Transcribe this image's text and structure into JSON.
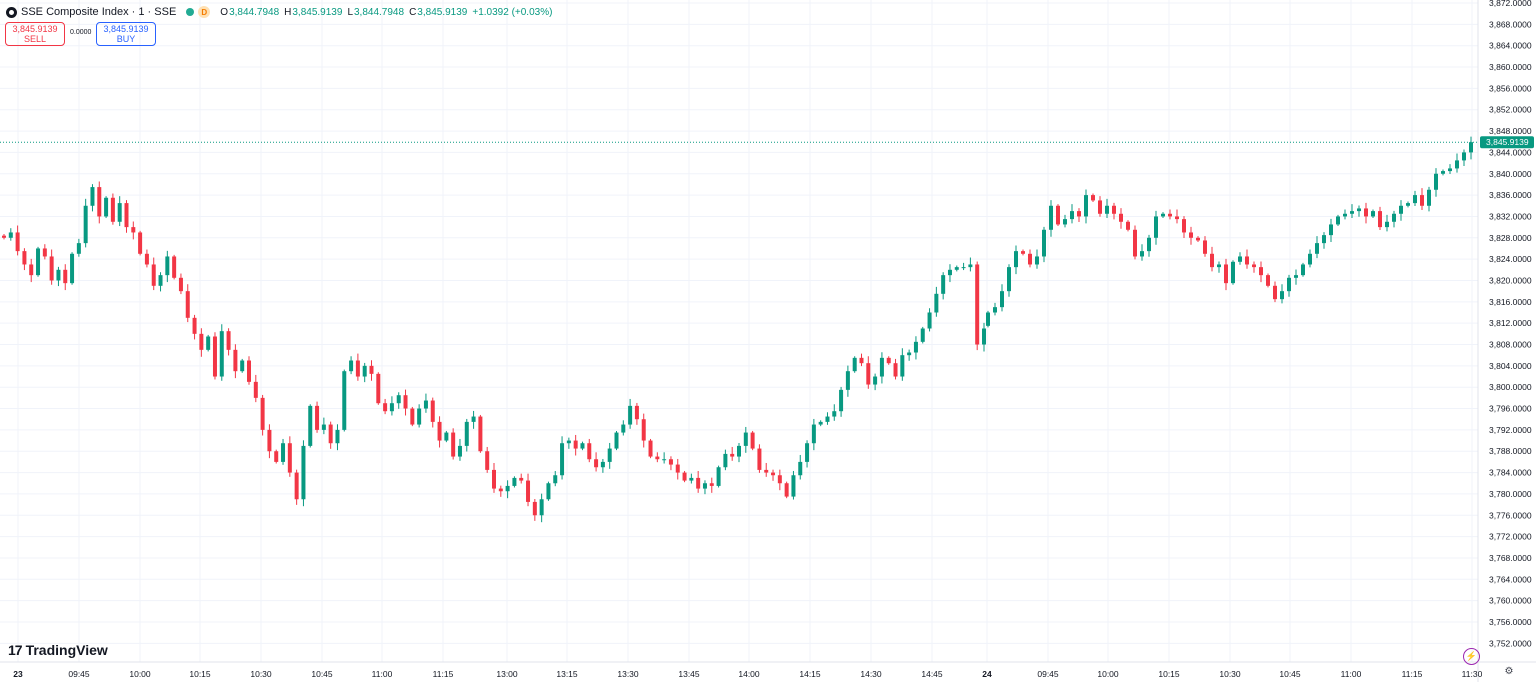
{
  "header": {
    "title": "SSE Composite Index · 1 · SSE",
    "badge": "D",
    "o_label": "O",
    "o_value": "3,844.7948",
    "h_label": "H",
    "h_value": "3,845.9139",
    "l_label": "L",
    "l_value": "3,844.7948",
    "c_label": "C",
    "c_value": "3,845.9139",
    "change": "+1.0392 (+0.03%)"
  },
  "trade": {
    "sell_price": "3,845.9139",
    "sell_label": "SELL",
    "spread": "0.0000",
    "buy_price": "3,845.9139",
    "buy_label": "BUY"
  },
  "branding": {
    "name": "TradingView"
  },
  "colors": {
    "up": "#089981",
    "down": "#f23645",
    "grid": "#f0f3fa",
    "text": "#131722",
    "price_tag": "#089981"
  },
  "chart_data": {
    "type": "candlestick",
    "y_range": [
      3750,
      3872
    ],
    "y_ticks": [
      3752,
      3756,
      3760,
      3764,
      3768,
      3772,
      3776,
      3780,
      3784,
      3788,
      3792,
      3796,
      3800,
      3804,
      3808,
      3812,
      3816,
      3820,
      3824,
      3828,
      3832,
      3836,
      3840,
      3844,
      3848,
      3852,
      3856,
      3860,
      3864,
      3868,
      3872
    ],
    "y_tick_labels": [
      "3,752.0000",
      "3,756.0000",
      "3,760.0000",
      "3,764.0000",
      "3,768.0000",
      "3,772.0000",
      "3,776.0000",
      "3,780.0000",
      "3,784.0000",
      "3,788.0000",
      "3,792.0000",
      "3,796.0000",
      "3,800.0000",
      "3,804.0000",
      "3,808.0000",
      "3,812.0000",
      "3,816.0000",
      "3,820.0000",
      "3,824.0000",
      "3,828.0000",
      "3,832.0000",
      "3,836.0000",
      "3,840.0000",
      "3,844.0000",
      "3,848.0000",
      "3,852.0000",
      "3,856.0000",
      "3,860.0000",
      "3,864.0000",
      "3,868.0000",
      "3,872.0000"
    ],
    "x_tick_labels": [
      "23",
      "09:45",
      "10:00",
      "10:15",
      "10:30",
      "10:45",
      "11:00",
      "11:15",
      "13:00",
      "13:15",
      "13:30",
      "13:45",
      "14:00",
      "14:15",
      "14:30",
      "14:45",
      "24",
      "09:45",
      "10:00",
      "10:15",
      "10:30",
      "10:45",
      "11:00",
      "11:15",
      "11:30"
    ],
    "current_price": 3845.9139,
    "current_price_label": "3,845.9139",
    "closes": [
      3828.0,
      3829.0,
      3825.5,
      3823.0,
      3821.0,
      3826.0,
      3824.5,
      3820.0,
      3822.0,
      3819.5,
      3825.0,
      3827.0,
      3834.0,
      3837.5,
      3832.0,
      3835.5,
      3831.0,
      3834.5,
      3830.0,
      3829.0,
      3825.0,
      3823.0,
      3819.0,
      3821.0,
      3824.5,
      3820.5,
      3818.0,
      3813.0,
      3810.0,
      3807.0,
      3809.5,
      3802.0,
      3810.5,
      3807.0,
      3803.0,
      3805.0,
      3801.0,
      3798.0,
      3792.0,
      3788.0,
      3786.0,
      3789.5,
      3784.0,
      3779.0,
      3789.0,
      3796.5,
      3792.0,
      3793.0,
      3789.5,
      3792.0,
      3803.0,
      3805.0,
      3802.0,
      3804.0,
      3802.5,
      3797.0,
      3795.5,
      3797.0,
      3798.5,
      3796.0,
      3793.0,
      3796.0,
      3797.5,
      3793.5,
      3790.0,
      3791.5,
      3787.0,
      3789.0,
      3793.5,
      3794.5,
      3788.0,
      3784.5,
      3781.0,
      3780.5,
      3781.5,
      3783.0,
      3782.5,
      3778.5,
      3776.0,
      3779.0,
      3782.0,
      3783.5,
      3789.5,
      3790.0,
      3788.5,
      3789.5,
      3786.5,
      3785.0,
      3786.0,
      3788.5,
      3791.5,
      3793.0,
      3796.5,
      3794.0,
      3790.0,
      3787.0,
      3786.5,
      3786.5,
      3785.5,
      3784.0,
      3782.5,
      3783.0,
      3781.0,
      3782.0,
      3781.5,
      3785.0,
      3787.5,
      3787.0,
      3789.0,
      3791.5,
      3788.5,
      3784.5,
      3784.0,
      3783.5,
      3782.0,
      3779.5,
      3783.5,
      3786.0,
      3789.5,
      3793.0,
      3793.5,
      3794.5,
      3795.5,
      3799.5,
      3803.0,
      3805.5,
      3804.5,
      3800.5,
      3802.0,
      3805.5,
      3804.5,
      3802.0,
      3806.0,
      3806.5,
      3808.5,
      3811.0,
      3814.0,
      3817.5,
      3821.0,
      3822.0,
      3822.5,
      3822.5,
      3823.0,
      3808.0,
      3811.0,
      3814.0,
      3815.0,
      3818.0,
      3822.5,
      3825.5,
      3825.0,
      3823.0,
      3824.5,
      3829.5,
      3834.0,
      3830.5,
      3831.5,
      3833.0,
      3832.0,
      3836.0,
      3835.0,
      3832.5,
      3834.0,
      3832.5,
      3831.0,
      3829.5,
      3824.5,
      3825.5,
      3828.0,
      3832.0,
      3832.5,
      3832.0,
      3831.5,
      3829.0,
      3828.0,
      3827.5,
      3825.0,
      3822.5,
      3823.0,
      3819.5,
      3823.5,
      3824.5,
      3823.0,
      3822.5,
      3821.0,
      3819.0,
      3816.5,
      3818.0,
      3820.5,
      3821.0,
      3823.0,
      3825.0,
      3827.0,
      3828.5,
      3830.5,
      3832.0,
      3832.5,
      3833.0,
      3833.5,
      3832.0,
      3833.0,
      3830.0,
      3831.0,
      3832.5,
      3834.0,
      3834.5,
      3836.0,
      3834.0,
      3837.0,
      3840.0,
      3840.5,
      3841.0,
      3842.5,
      3844.0,
      3845.9139
    ]
  }
}
